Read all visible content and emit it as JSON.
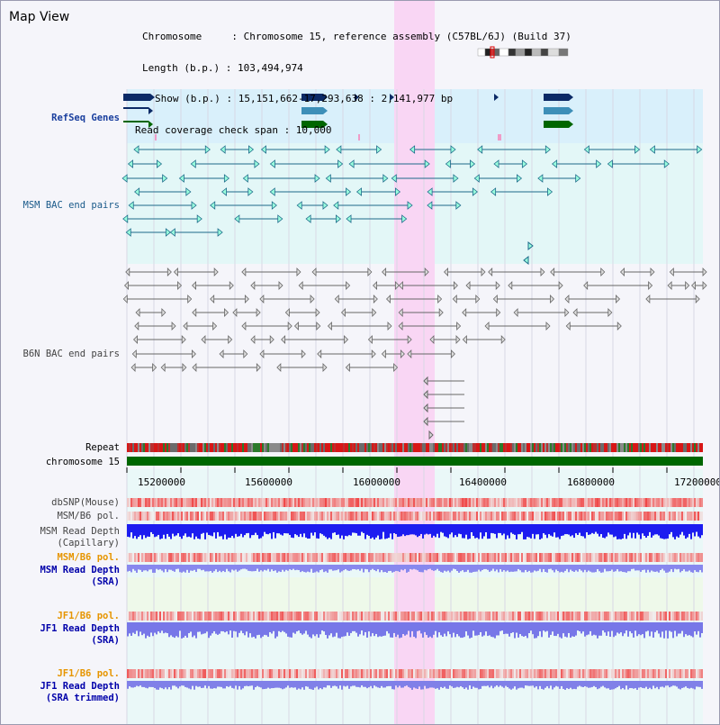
{
  "window": {
    "title": "Map View"
  },
  "info": {
    "chromosome_line": "Chromosome     : Chromosome 15, reference assembly (C57BL/6J) (Build 37)",
    "length_line": "Length (b.p.) : 103,494,974",
    "show_line": "Show (b.p.) : 15,151,662-17,293,638 : 2,141,977 bp",
    "coverage_line": "Read coverage check span : 10,000"
  },
  "labels": {
    "refseq": "RefSeq Genes",
    "msm_bac": "MSM BAC end pairs",
    "b6n_bac": "B6N BAC end pairs",
    "repeat": "Repeat",
    "chromosome": "chromosome 15",
    "dbsnp": "dbSNP(Mouse)",
    "msm_b6_pol_1": "MSM/B6 pol.",
    "msm_depth_cap_1": "MSM Read Depth",
    "msm_depth_cap_2": "(Capillary)",
    "msm_b6_pol_2": "MSM/B6 pol.",
    "msm_depth_sra_1": "MSM Read Depth",
    "msm_depth_sra_2": "(SRA)",
    "jf1_b6_pol_1": "JF1/B6 pol.",
    "jf1_depth_sra_1": "JF1 Read Depth",
    "jf1_depth_sra_2": "(SRA)",
    "jf1_b6_pol_2": "JF1/B6 pol.",
    "jf1_depth_trim_1": "JF1 Read Depth",
    "jf1_depth_trim_2": "(SRA trimmed)"
  },
  "axis": {
    "ticks": [
      "15200000",
      "15600000",
      "16000000",
      "16400000",
      "16800000",
      "17200000"
    ]
  },
  "colors": {
    "highlight": "#f9d6f4",
    "refseq_bg": "#d9f0fb",
    "msm_bg": "#e3f7f7",
    "chromosome_bar": "#006600",
    "msm_label": "#1a3f9e",
    "b6n_label": "#444444",
    "orange_label": "#e69500",
    "blue_label": "#0000aa"
  }
}
